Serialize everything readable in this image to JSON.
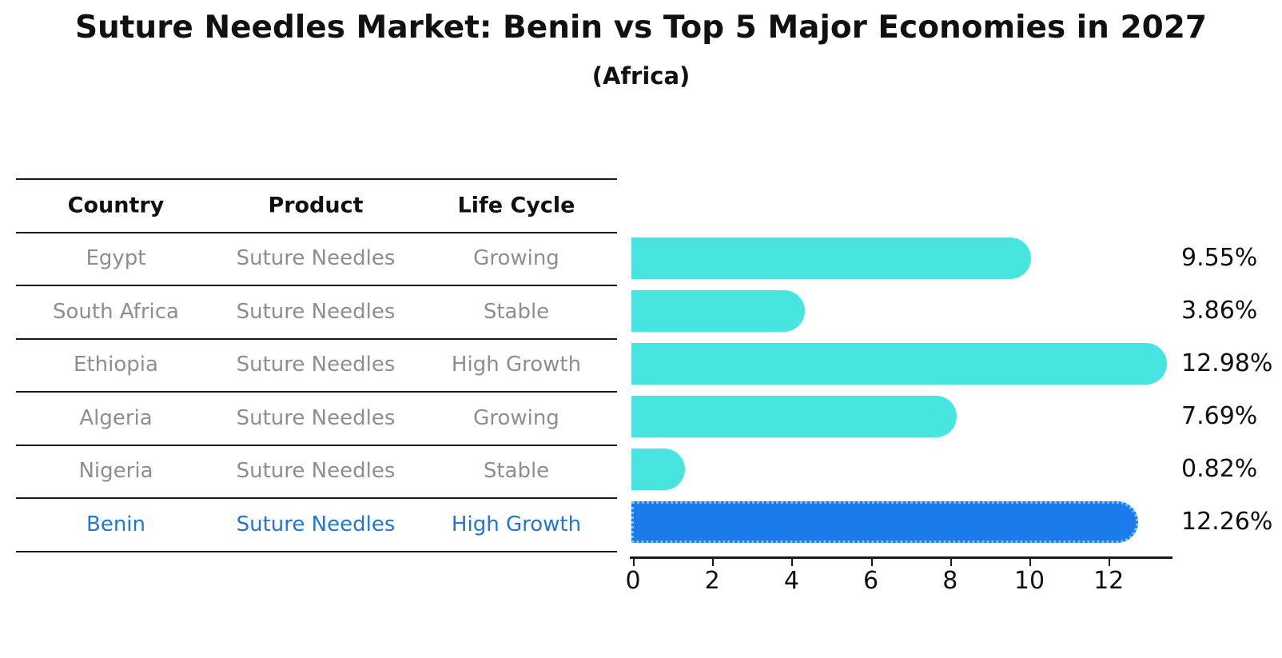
{
  "title": "Suture Needles Market: Benin vs Top 5 Major Economies in 2027",
  "subtitle": "(Africa)",
  "table": {
    "headers": [
      "Country",
      "Product",
      "Life Cycle"
    ],
    "rows": [
      {
        "country": "Egypt",
        "product": "Suture Needles",
        "life_cycle": "Growing",
        "highlight": false
      },
      {
        "country": "South Africa",
        "product": "Suture Needles",
        "life_cycle": "Stable",
        "highlight": false
      },
      {
        "country": "Ethiopia",
        "product": "Suture Needles",
        "life_cycle": "High Growth",
        "highlight": false
      },
      {
        "country": "Algeria",
        "product": "Suture Needles",
        "life_cycle": "Growing",
        "highlight": false
      },
      {
        "country": "Nigeria",
        "product": "Suture Needles",
        "life_cycle": "Stable",
        "highlight": false
      },
      {
        "country": "Benin",
        "product": "Suture Needles",
        "life_cycle": "High Growth",
        "highlight": true
      }
    ]
  },
  "chart_data": {
    "type": "bar",
    "orientation": "horizontal",
    "title": "Suture Needles Market: Benin vs Top 5 Major Economies in 2027 (Africa)",
    "categories": [
      "Egypt",
      "South Africa",
      "Ethiopia",
      "Algeria",
      "Nigeria",
      "Benin"
    ],
    "values": [
      9.55,
      3.86,
      12.98,
      7.69,
      0.82,
      12.26
    ],
    "value_labels": [
      "9.55%",
      "3.86%",
      "12.98%",
      "7.69%",
      "0.82%",
      "12.26%"
    ],
    "xticks": [
      "0",
      "2",
      "4",
      "6",
      "8",
      "10",
      "12"
    ],
    "xlim": [
      0,
      13.6
    ],
    "grid": false,
    "legend": false,
    "bar_color": "#48E4E0",
    "highlight_color": "#1B7BEB",
    "highlight_index": 5
  }
}
